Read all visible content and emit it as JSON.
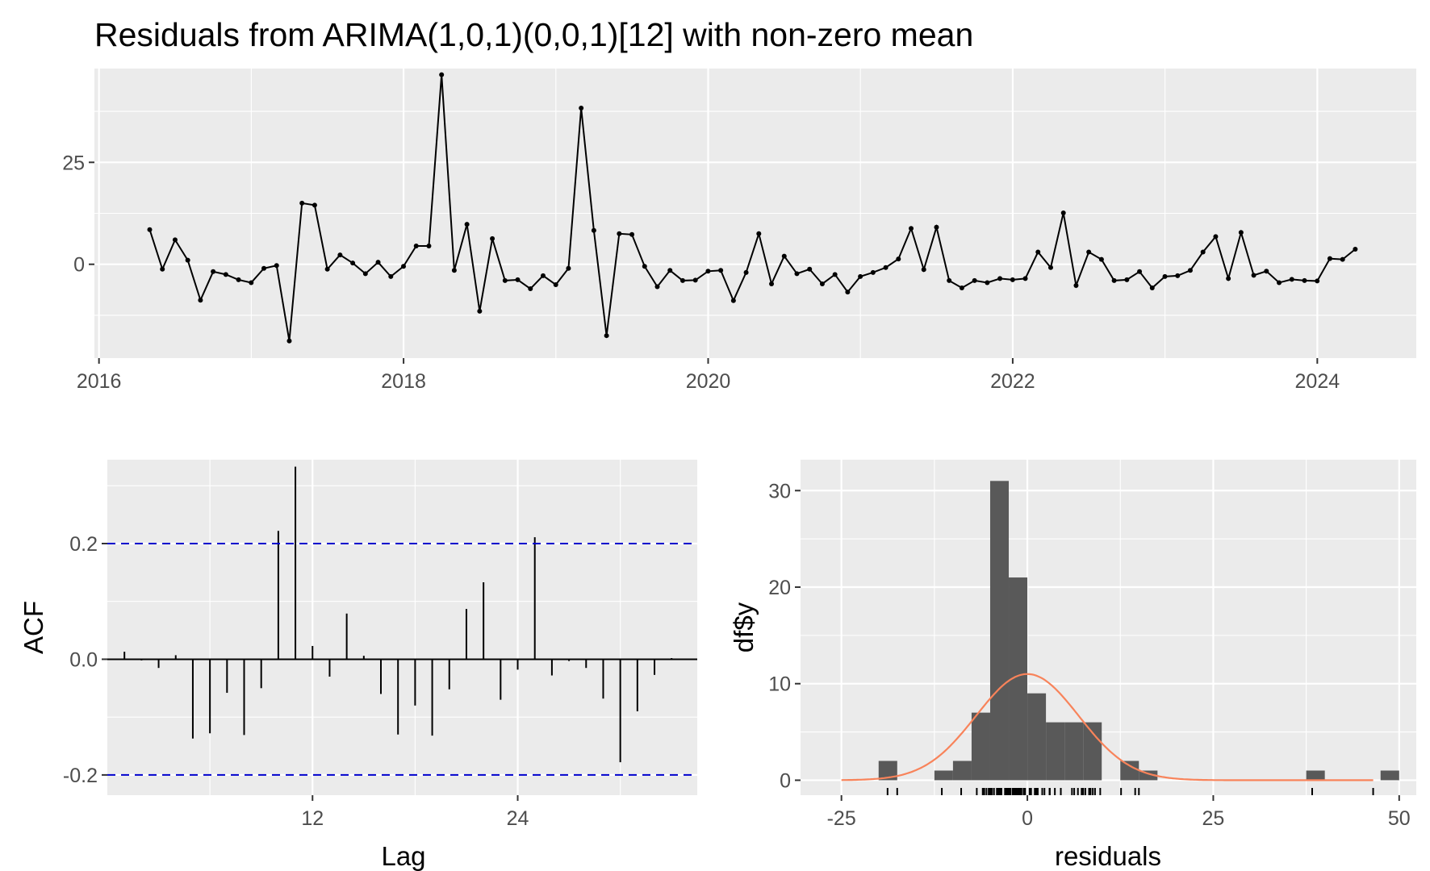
{
  "chart_data": [
    {
      "type": "line",
      "title": "Residuals from ARIMA(1,0,1)(0,0,1)[12] with non-zero mean",
      "xlabel": "",
      "ylabel": "",
      "xlim": [
        2015.97,
        2024.65
      ],
      "ylim": [
        -23,
        48
      ],
      "x_ticks": [
        2016,
        2018,
        2020,
        2022,
        2024
      ],
      "x_tick_labels": [
        "2016",
        "2018",
        "2020",
        "2022",
        "2024"
      ],
      "y_ticks": [
        0,
        25
      ],
      "y_tick_labels": [
        "0",
        "25"
      ],
      "x_start": 2016.333,
      "x_step": 0.08333,
      "values": [
        8.5,
        -1.2,
        6.0,
        1.0,
        -8.8,
        -1.8,
        -2.5,
        -3.8,
        -4.5,
        -1.0,
        -0.3,
        -18.8,
        15.0,
        14.5,
        -1.2,
        2.3,
        0.3,
        -2.3,
        0.5,
        -3.0,
        -0.5,
        4.5,
        4.5,
        46.5,
        -1.5,
        9.8,
        -11.5,
        6.3,
        -4.0,
        -3.8,
        -6.0,
        -2.8,
        -5.0,
        -1.0,
        38.3,
        8.3,
        -17.5,
        7.5,
        7.3,
        -0.5,
        -5.5,
        -1.5,
        -4.0,
        -3.9,
        -1.7,
        -1.5,
        -8.9,
        -2.0,
        7.5,
        -4.8,
        2.0,
        -2.3,
        -1.2,
        -4.8,
        -2.5,
        -6.8,
        -3.0,
        -2.0,
        -0.8,
        1.3,
        8.8,
        -1.3,
        9.1,
        -4.0,
        -5.8,
        -4.0,
        -4.5,
        -3.5,
        -3.8,
        -3.5,
        3.0,
        -0.8,
        12.6,
        -5.2,
        3.0,
        1.2,
        -4.0,
        -3.8,
        -1.8,
        -5.8,
        -3.0,
        -2.8,
        -1.5,
        3.0,
        6.8,
        -3.5,
        7.8,
        -2.7,
        -1.7,
        -4.5,
        -3.7,
        -4.0,
        -4.1,
        1.4,
        1.2,
        3.7
      ]
    },
    {
      "type": "bar",
      "subtype": "acf",
      "title": "",
      "xlabel": "Lag",
      "ylabel": "ACF",
      "xlim": [
        0,
        34.5
      ],
      "ylim": [
        -0.235,
        0.345
      ],
      "x_ticks": [
        12,
        24
      ],
      "x_tick_labels": [
        "12",
        "24"
      ],
      "y_ticks": [
        -0.2,
        0.0,
        0.2
      ],
      "y_tick_labels": [
        "-0.2",
        "0.0",
        "0.2"
      ],
      "confidence_bounds": [
        0.2,
        -0.2
      ],
      "lags": [
        1,
        2,
        3,
        4,
        5,
        6,
        7,
        8,
        9,
        10,
        11,
        12,
        13,
        14,
        15,
        16,
        17,
        18,
        19,
        20,
        21,
        22,
        23,
        24,
        25,
        26,
        27,
        28,
        29,
        30,
        31,
        32,
        33
      ],
      "values": [
        0.013,
        -0.002,
        -0.015,
        0.007,
        -0.137,
        -0.128,
        -0.058,
        -0.131,
        -0.05,
        0.222,
        0.333,
        0.023,
        -0.03,
        0.079,
        0.006,
        -0.06,
        -0.13,
        -0.08,
        -0.132,
        -0.052,
        0.087,
        0.133,
        -0.07,
        -0.018,
        0.211,
        -0.028,
        -0.003,
        -0.015,
        -0.068,
        -0.178,
        -0.09,
        -0.027,
        0.002
      ]
    },
    {
      "type": "bar",
      "subtype": "histogram",
      "title": "",
      "xlabel": "residuals",
      "ylabel": "df$y",
      "xlim": [
        -30.5,
        52.3
      ],
      "ylim": [
        -1.55,
        33.2
      ],
      "x_ticks": [
        -25,
        0,
        25,
        50
      ],
      "x_tick_labels": [
        "-25",
        "0",
        "25",
        "50"
      ],
      "y_ticks": [
        0,
        10,
        20,
        30
      ],
      "y_tick_labels": [
        "0",
        "10",
        "20",
        "30"
      ],
      "bin_width": 2.5,
      "bin_starts": [
        -20,
        -12.5,
        -10,
        -7.5,
        -5,
        -2.5,
        0,
        2.5,
        5,
        7.5,
        12.5,
        15,
        37.5,
        47.5
      ],
      "counts": [
        2,
        1,
        2,
        7,
        31,
        21,
        9,
        6,
        6,
        6,
        2,
        1,
        1,
        1
      ],
      "normal_curve": {
        "mean": 0,
        "sd": 6.9,
        "scale": 11.0,
        "from": -25,
        "to": 46.5,
        "color": "#f8835a"
      },
      "rug": [
        -18.8,
        -17.5,
        -11.5,
        -8.9,
        -6.8,
        -6.0,
        -5.8,
        -5.8,
        -5.5,
        -5.2,
        -5.0,
        -4.8,
        -4.8,
        -4.5,
        -4.5,
        -4.5,
        -4.1,
        -4.0,
        -4.0,
        -4.0,
        -4.0,
        -3.9,
        -3.8,
        -3.8,
        -3.8,
        -3.7,
        -3.5,
        -3.5,
        -3.5,
        -3.0,
        -3.0,
        -2.8,
        -2.8,
        -2.7,
        -2.5,
        -2.5,
        -2.3,
        -2.3,
        -2.0,
        -1.8,
        -1.8,
        -1.7,
        -1.7,
        -1.5,
        -1.5,
        -1.5,
        -1.3,
        -1.2,
        -1.2,
        -1.2,
        -1.0,
        -1.0,
        -0.8,
        -0.8,
        -0.5,
        -0.5,
        -0.3,
        0.3,
        0.5,
        1.0,
        1.2,
        1.2,
        1.3,
        1.4,
        2.0,
        2.3,
        3.0,
        3.0,
        3.0,
        3.7,
        4.5,
        4.5,
        6.0,
        6.3,
        6.8,
        7.3,
        7.5,
        7.5,
        7.8,
        8.3,
        8.5,
        8.8,
        9.1,
        9.8,
        12.6,
        14.5,
        15.0,
        38.3,
        46.5
      ]
    }
  ],
  "colors": {
    "panel_bg": "#ebebeb",
    "grid": "#ffffff",
    "series": "#000000",
    "bars": "#595959",
    "ci": "#0000cc",
    "curve": "#f8835a",
    "tick_text": "#4d4d4d"
  }
}
